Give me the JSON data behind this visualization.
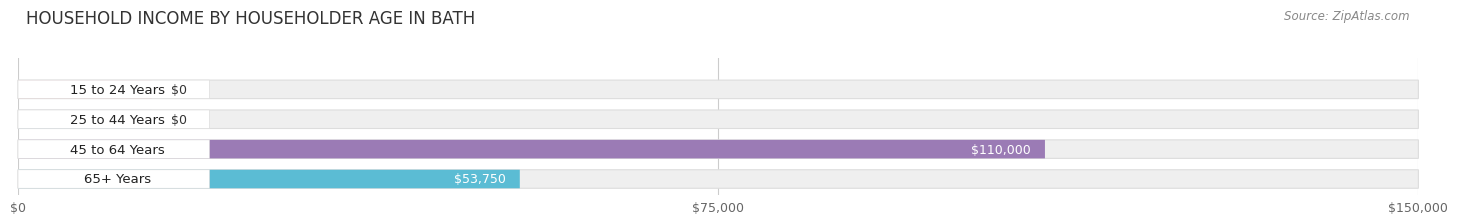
{
  "title": "HOUSEHOLD INCOME BY HOUSEHOLDER AGE IN BATH",
  "source": "Source: ZipAtlas.com",
  "categories": [
    "15 to 24 Years",
    "25 to 44 Years",
    "45 to 64 Years",
    "65+ Years"
  ],
  "values": [
    0,
    0,
    110000,
    53750
  ],
  "bar_colors": [
    "#e8878a",
    "#a8c4e0",
    "#9b7bb5",
    "#5bbcd4"
  ],
  "label_colors": [
    "#333333",
    "#333333",
    "#333333",
    "#333333"
  ],
  "xlim": [
    0,
    150000
  ],
  "xticks": [
    0,
    75000,
    150000
  ],
  "xtick_labels": [
    "$0",
    "$75,000",
    "$150,000"
  ],
  "value_labels": [
    "$0",
    "$0",
    "$110,000",
    "$53,750"
  ],
  "background_color": "#ffffff",
  "bar_background_color": "#efefef",
  "bar_background_edge": "#dddddd",
  "title_fontsize": 12,
  "source_fontsize": 8.5,
  "label_fontsize": 9.5,
  "value_fontsize": 9,
  "tick_fontsize": 9
}
